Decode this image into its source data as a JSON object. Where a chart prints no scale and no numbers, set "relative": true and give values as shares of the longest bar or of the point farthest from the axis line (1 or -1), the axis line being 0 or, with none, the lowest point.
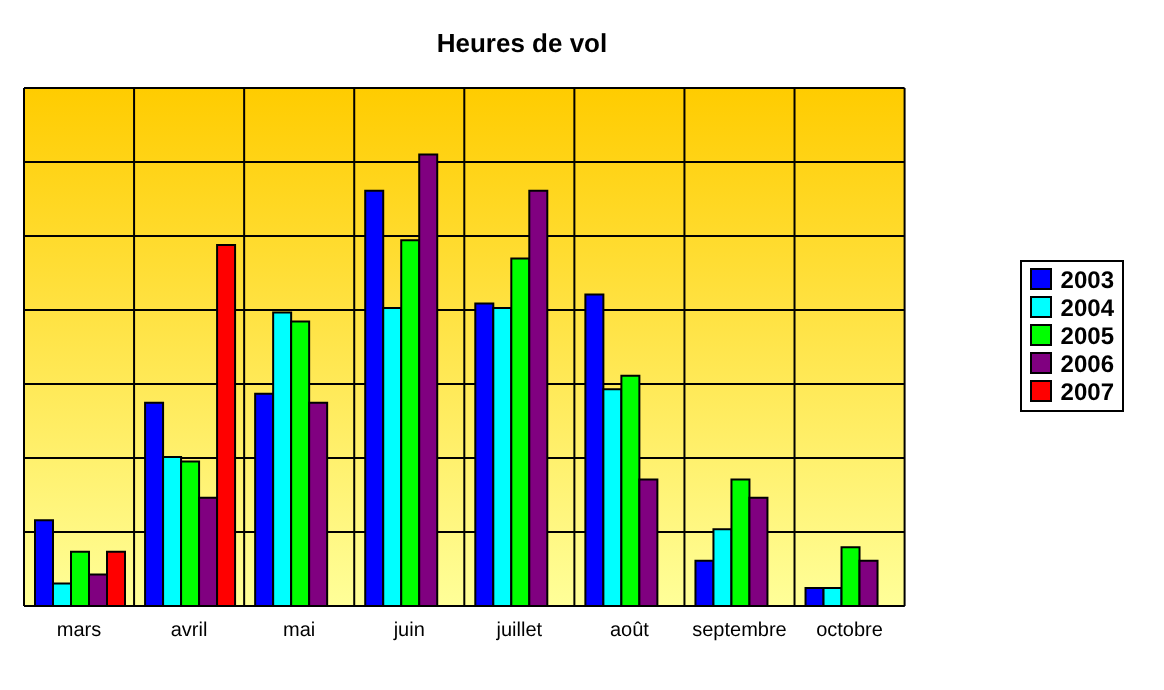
{
  "chart_data": {
    "type": "bar",
    "title": "Heures de vol",
    "relative": true,
    "grid": true,
    "legend": "right",
    "categories": [
      "mars",
      "avril",
      "mai",
      "juin",
      "juillet",
      "août",
      "septembre",
      "octobre"
    ],
    "series": [
      {
        "name": "2003",
        "color": "#0000ff",
        "values": [
          0.19,
          0.45,
          0.47,
          0.92,
          0.67,
          0.69,
          0.1,
          0.04
        ]
      },
      {
        "name": "2004",
        "color": "#00ffff",
        "values": [
          0.05,
          0.33,
          0.65,
          0.66,
          0.66,
          0.48,
          0.17,
          0.04
        ]
      },
      {
        "name": "2005",
        "color": "#00ff00",
        "values": [
          0.12,
          0.32,
          0.63,
          0.81,
          0.77,
          0.51,
          0.28,
          0.13
        ]
      },
      {
        "name": "2006",
        "color": "#800080",
        "values": [
          0.07,
          0.24,
          0.45,
          1,
          0.92,
          0.28,
          0.24,
          0.1
        ]
      },
      {
        "name": "2007",
        "color": "#ff0000",
        "values": [
          0.12,
          0.8,
          null,
          null,
          null,
          null,
          null,
          null
        ]
      }
    ]
  }
}
